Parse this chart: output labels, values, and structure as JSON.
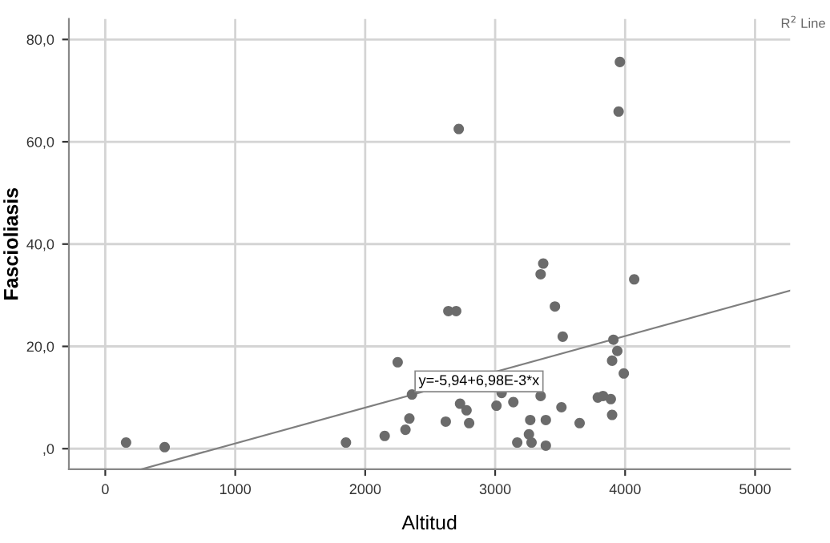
{
  "chart_data": {
    "type": "scatter",
    "xlabel": "Altitud",
    "ylabel": "Fascioliasis",
    "xlim": [
      -280,
      5270
    ],
    "ylim": [
      -4,
      84
    ],
    "xticks": [
      0,
      1000,
      2000,
      3000,
      4000,
      5000
    ],
    "yticks": [
      {
        "value": 0,
        "label": ",0"
      },
      {
        "value": 20,
        "label": "20,0"
      },
      {
        "value": 40,
        "label": "40,0"
      },
      {
        "value": 60,
        "label": "60,0"
      },
      {
        "value": 80,
        "label": "80,0"
      }
    ],
    "grid": true,
    "series": [
      {
        "color": "#6b6b6b",
        "marker": "circle",
        "x": [
          160,
          457,
          1852,
          2150,
          2250,
          2310,
          2340,
          2360,
          2620,
          2640,
          2700,
          2720,
          2730,
          2780,
          2800,
          3010,
          3050,
          3140,
          3170,
          3260,
          3270,
          3280,
          3350,
          3350,
          3370,
          3390,
          3390,
          3460,
          3510,
          3520,
          3650,
          3790,
          3830,
          3890,
          3900,
          3900,
          3910,
          3940,
          3950,
          3960,
          3990,
          4070
        ],
        "values": [
          1.2,
          0.3,
          1.2,
          2.5,
          16.9,
          3.7,
          5.9,
          10.6,
          5.3,
          26.9,
          26.9,
          62.5,
          8.8,
          7.5,
          5.0,
          8.4,
          10.9,
          9.1,
          1.2,
          2.8,
          5.6,
          1.2,
          34.1,
          10.3,
          36.2,
          5.6,
          0.6,
          27.8,
          8.1,
          21.9,
          5.0,
          10.0,
          10.3,
          9.7,
          6.6,
          17.2,
          21.3,
          19.1,
          65.9,
          75.6,
          14.7,
          33.1
        ]
      },
      {
        "type": "line",
        "color": "#7f7f7f",
        "x": [
          280,
          5270
        ],
        "values": [
          -4,
          30.9
        ]
      }
    ],
    "annotations": [
      "y=-5,94+6,98E-3*x",
      "R$^{2}$ Line"
    ]
  }
}
